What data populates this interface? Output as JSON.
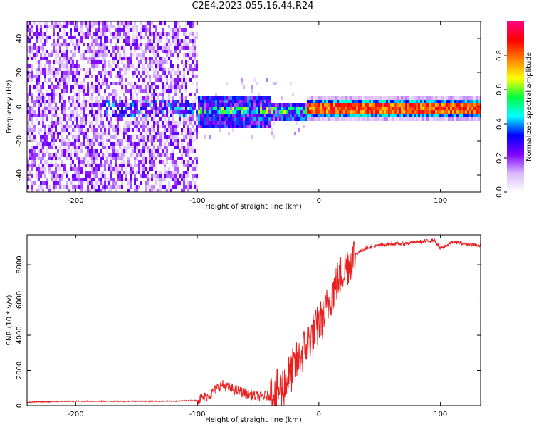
{
  "title": "C2E4.2023.055.16.44.R24",
  "chart_data": [
    {
      "type": "heatmap",
      "xlabel": "Height of straight line (km)",
      "ylabel": "Frequency (Hz)",
      "xlim": [
        -240,
        133
      ],
      "ylim": [
        -50,
        50
      ],
      "xticks": [
        -200,
        -100,
        0,
        100
      ],
      "yticks": [
        -40,
        -20,
        0,
        20,
        40
      ],
      "colorbar": {
        "label": "Normalized spectral amplitude",
        "range": [
          0,
          1
        ],
        "ticks": [
          0.0,
          0.2,
          0.4,
          0.6,
          0.8
        ],
        "colors": [
          "#ffffff",
          "#d9b8ff",
          "#8000ff",
          "#0000ff",
          "#00ffff",
          "#00ff40",
          "#ffff00",
          "#ff8000",
          "#ff0000",
          "#ff0080"
        ]
      },
      "regions": [
        {
          "x": [
            -240,
            -100
          ],
          "freq": [
            -50,
            50
          ],
          "amplitude": 0.12,
          "description": "noise"
        },
        {
          "x": [
            -100,
            -10
          ],
          "freq": [
            -15,
            8
          ],
          "amplitude": 0.35
        },
        {
          "x": [
            -10,
            133
          ],
          "freq": [
            -3,
            3
          ],
          "amplitude": 0.85
        }
      ]
    },
    {
      "type": "line",
      "xlabel": "Height of straight line (km)",
      "ylabel": "SNR (10 * v/v)",
      "xlim": [
        -240,
        133
      ],
      "ylim": [
        0,
        9700
      ],
      "xticks": [
        -200,
        -100,
        0,
        100
      ],
      "yticks": [
        0,
        2000,
        4000,
        6000,
        8000
      ],
      "color": "#e82020",
      "x": [
        -240,
        -200,
        -160,
        -120,
        -100,
        -90,
        -80,
        -70,
        -60,
        -50,
        -40,
        -30,
        -25,
        -20,
        -15,
        -10,
        -5,
        0,
        5,
        10,
        15,
        20,
        30,
        40,
        50,
        60,
        70,
        80,
        90,
        95,
        100,
        110,
        120,
        133
      ],
      "y": [
        200,
        250,
        250,
        250,
        300,
        600,
        1200,
        900,
        700,
        500,
        600,
        1000,
        1700,
        2200,
        2800,
        3500,
        4000,
        4600,
        5200,
        6300,
        7000,
        7700,
        8600,
        9000,
        9100,
        9200,
        9200,
        9300,
        9350,
        9400,
        8900,
        9300,
        9200,
        9100
      ]
    }
  ]
}
